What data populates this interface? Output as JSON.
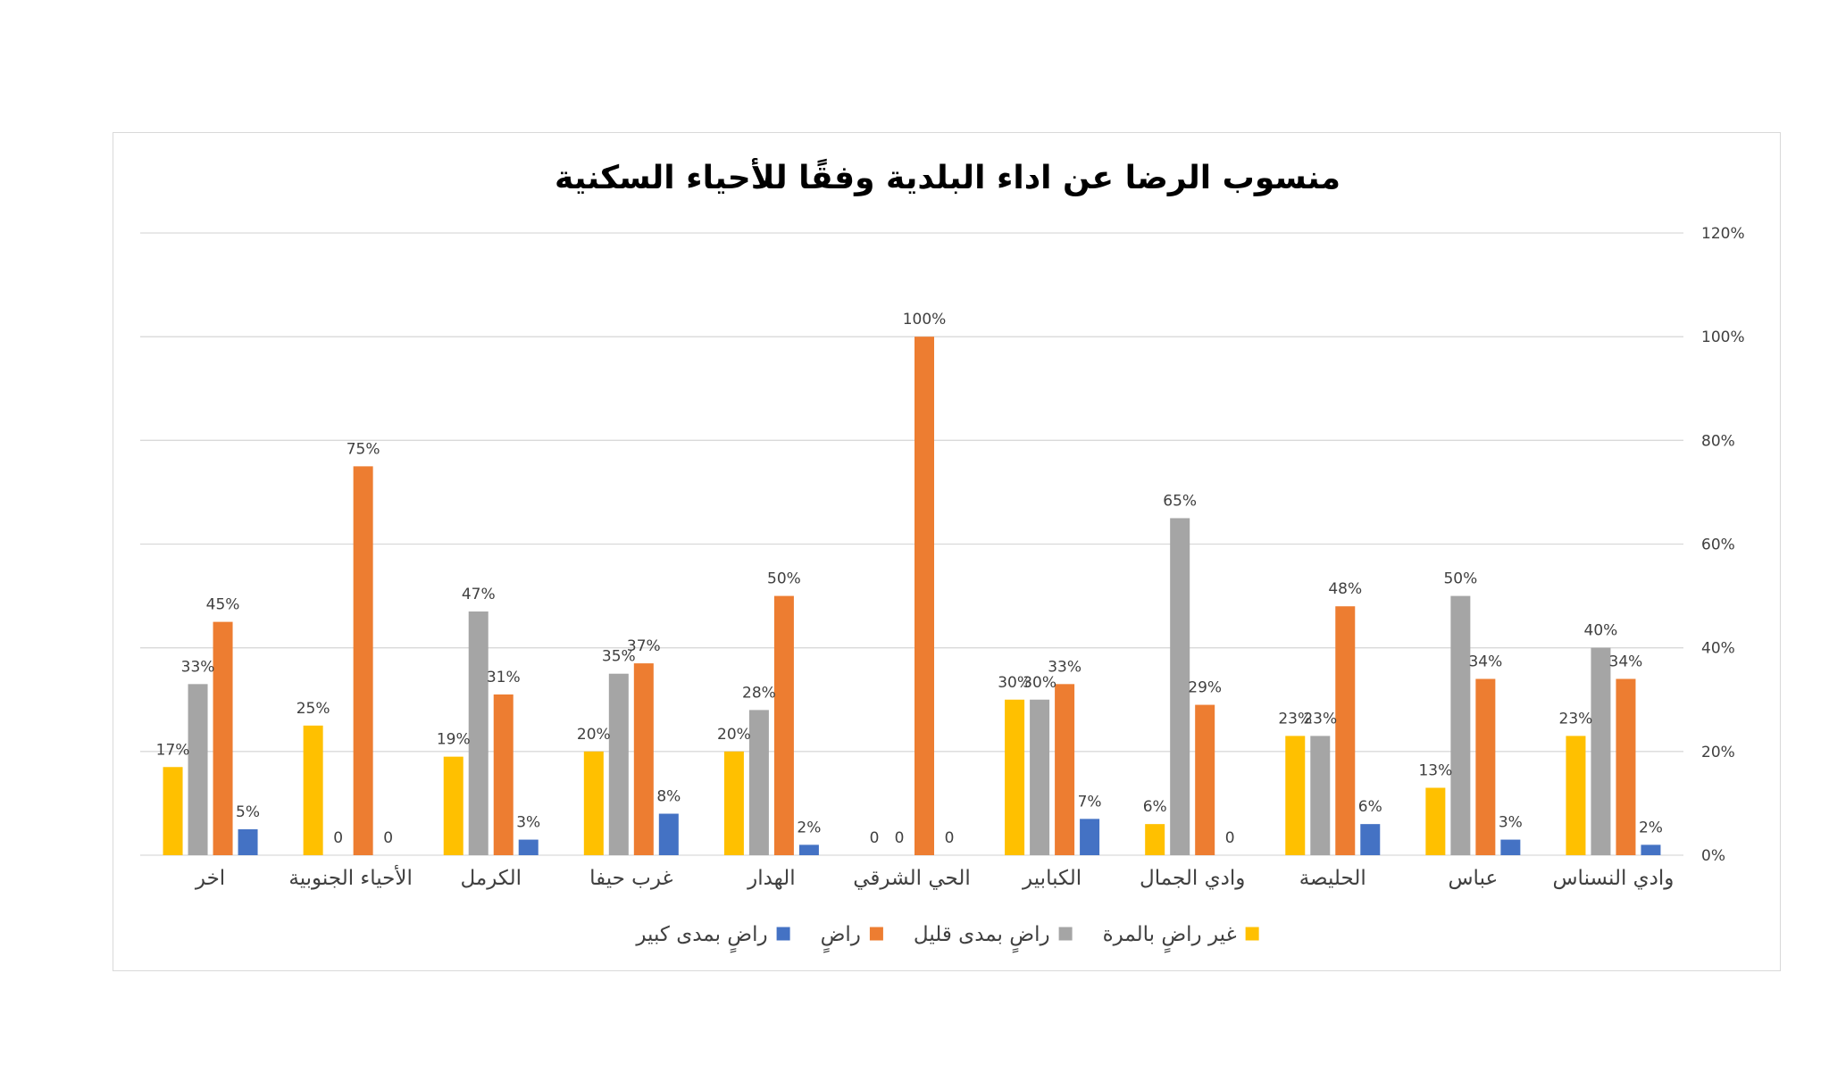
{
  "chart_data": {
    "type": "bar",
    "title": "منسوب الرضا عن اداء البلدية وفقًا للأحياء السكنية",
    "categories": [
      "وادي النسناس",
      "عباس",
      "الحليصة",
      "وادي الجمال",
      "الكبابير",
      "الحي الشرقي",
      "الهدار",
      "غرب حيفا",
      "الكرمل",
      "الأحياء الجنوبية",
      "اخر"
    ],
    "category_order": "right-to-left",
    "ylim": [
      0,
      120
    ],
    "y_ticks": [
      0,
      20,
      40,
      60,
      80,
      100,
      120
    ],
    "y_tick_labels": [
      "0%",
      "20%",
      "40%",
      "60%",
      "80%",
      "100%",
      "120%"
    ],
    "y_axis_position": "right",
    "grid": true,
    "legend_position": "bottom",
    "series": [
      {
        "name": "غير راضٍ بالمرة",
        "color": "#FFC000",
        "values": [
          23,
          13,
          23,
          6,
          30,
          0,
          20,
          20,
          19,
          25,
          17
        ],
        "labels": [
          "23%",
          "13%",
          "23%",
          "6%",
          "30%",
          "0",
          "20%",
          "20%",
          "19%",
          "25%",
          "17%"
        ]
      },
      {
        "name": "راضٍ بمدى قليل",
        "color": "#A5A5A5",
        "values": [
          40,
          50,
          23,
          65,
          30,
          0,
          28,
          35,
          47,
          0,
          33
        ],
        "labels": [
          "40%",
          "50%",
          "23%",
          "65%",
          "30%",
          "0",
          "28%",
          "35%",
          "47%",
          "0",
          "33%"
        ]
      },
      {
        "name": "راضٍ",
        "color": "#ED7D31",
        "values": [
          34,
          34,
          48,
          29,
          33,
          100,
          50,
          37,
          31,
          75,
          45
        ],
        "labels": [
          "34%",
          "34%",
          "48%",
          "29%",
          "33%",
          "100%",
          "50%",
          "37%",
          "31%",
          "75%",
          "45%"
        ]
      },
      {
        "name": "راضٍ بمدى كبير",
        "color": "#4472C4",
        "values": [
          2,
          3,
          6,
          0,
          7,
          0,
          2,
          8,
          3,
          0,
          5
        ],
        "labels": [
          "2%",
          "3%",
          "6%",
          "0",
          "7%",
          "0",
          "2%",
          "8%",
          "3%",
          "0",
          "5%"
        ]
      }
    ]
  }
}
